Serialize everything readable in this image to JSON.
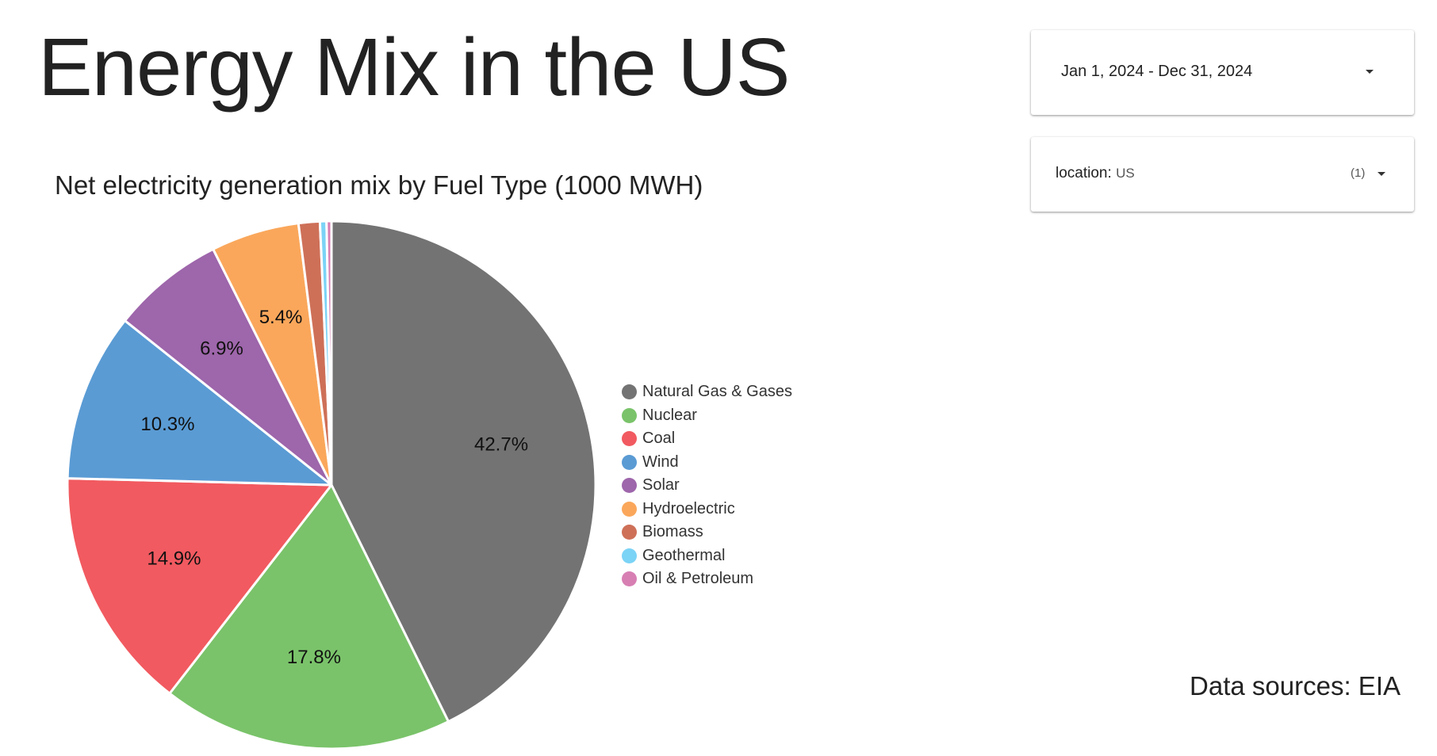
{
  "page": {
    "title": "Energy Mix in the US",
    "data_source": "Data sources: EIA"
  },
  "filters": {
    "date_range": "Jan 1, 2024 - Dec 31, 2024",
    "location_label": "location:",
    "location_value": "US",
    "location_count": "(1)"
  },
  "icons": {
    "date_dropdown": "chevron-down-icon",
    "location_dropdown": "chevron-down-icon",
    "legend_marker": "circle"
  },
  "chart_data": {
    "type": "pie",
    "title": "Net electricity generation mix by Fuel Type (1000 MWH)",
    "start_angle_deg": 0,
    "direction": "clockwise",
    "legend_position": "right",
    "slices": [
      {
        "name": "Natural Gas & Gases",
        "value": 42.7,
        "label": "42.7%",
        "color": "#737373"
      },
      {
        "name": "Nuclear",
        "value": 17.8,
        "label": "17.8%",
        "color": "#7ac36a"
      },
      {
        "name": "Coal",
        "value": 14.9,
        "label": "14.9%",
        "color": "#f15a60"
      },
      {
        "name": "Wind",
        "value": 10.3,
        "label": "10.3%",
        "color": "#5a9bd4"
      },
      {
        "name": "Solar",
        "value": 6.9,
        "label": "6.9%",
        "color": "#9e66ab"
      },
      {
        "name": "Hydroelectric",
        "value": 5.4,
        "label": "5.4%",
        "color": "#faa75b"
      },
      {
        "name": "Biomass",
        "value": 1.3,
        "label": "",
        "color": "#ce7058"
      },
      {
        "name": "Geothermal",
        "value": 0.4,
        "label": "",
        "color": "#7bd3f6"
      },
      {
        "name": "Oil & Petroleum",
        "value": 0.3,
        "label": "",
        "color": "#d77fb3"
      }
    ]
  }
}
